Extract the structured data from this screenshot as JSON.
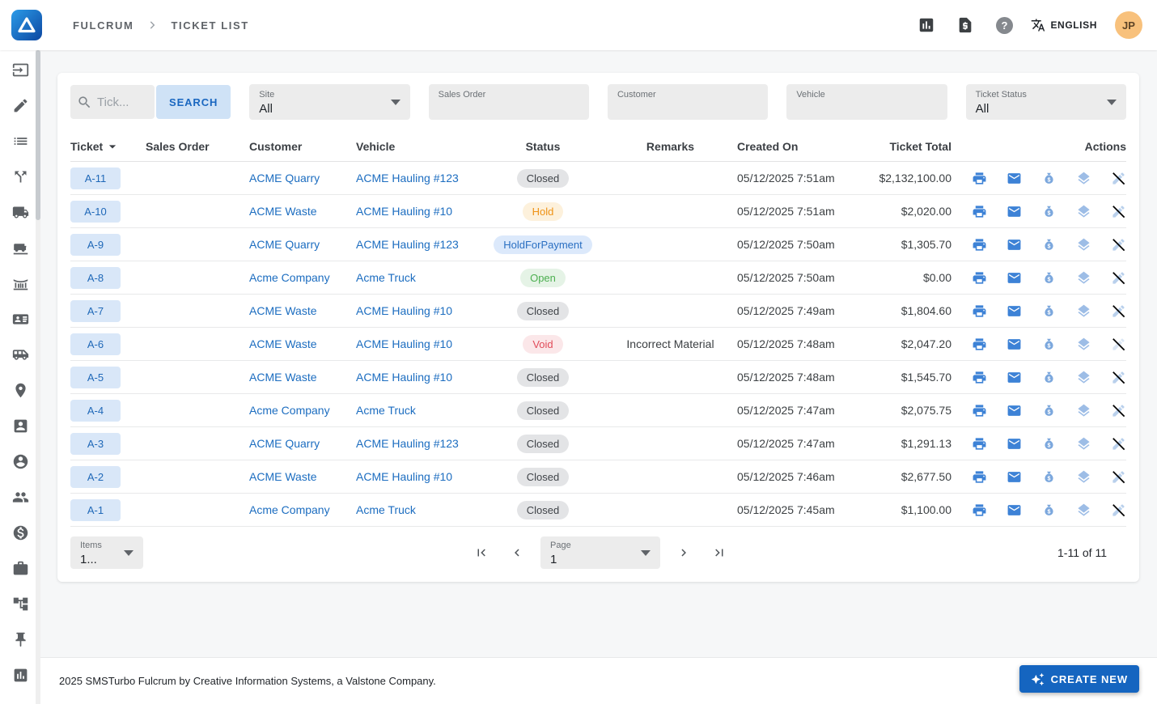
{
  "header": {
    "breadcrumb_root": "FULCRUM",
    "breadcrumb_current": "TICKET LIST",
    "help_glyph": "?",
    "language_label": "ENGLISH",
    "avatar_initials": "JP"
  },
  "sidebar": {
    "items": [
      {
        "name": "sidebar-item-ticket-entry",
        "icon": "input-ticket-icon"
      },
      {
        "name": "sidebar-item-edit-ticket",
        "icon": "pencil-icon"
      },
      {
        "name": "sidebar-item-ticket-list",
        "icon": "list-icon"
      },
      {
        "name": "sidebar-item-split-load",
        "icon": "split-arrows-icon"
      },
      {
        "name": "sidebar-item-vehicles",
        "icon": "truck-icon"
      },
      {
        "name": "sidebar-item-truck-scale",
        "icon": "truck-scale-icon"
      },
      {
        "name": "sidebar-item-weighbridge",
        "icon": "weighbridge-icon"
      },
      {
        "name": "sidebar-item-contacts",
        "icon": "contact-card-icon"
      },
      {
        "name": "sidebar-item-haulers",
        "icon": "truck-front-icon"
      },
      {
        "name": "sidebar-item-sites",
        "icon": "map-marker-icon"
      },
      {
        "name": "sidebar-item-id-badge",
        "icon": "id-badge-icon"
      },
      {
        "name": "sidebar-item-account",
        "icon": "person-circle-icon"
      },
      {
        "name": "sidebar-item-drivers",
        "icon": "people-icon"
      },
      {
        "name": "sidebar-item-pricing",
        "icon": "dollar-circle-icon"
      },
      {
        "name": "sidebar-item-jobs",
        "icon": "briefcase-icon"
      },
      {
        "name": "sidebar-item-org-chart",
        "icon": "org-chart-icon"
      },
      {
        "name": "sidebar-item-locations",
        "icon": "push-pin-icon"
      },
      {
        "name": "sidebar-item-reports",
        "icon": "chart-icon"
      }
    ]
  },
  "filters": {
    "search_placeholder": "Tick...",
    "search_button": "SEARCH",
    "site_label": "Site",
    "site_value": "All",
    "sales_order_label": "Sales Order",
    "sales_order_value": "",
    "customer_label": "Customer",
    "customer_value": "",
    "vehicle_label": "Vehicle",
    "vehicle_value": "",
    "ticket_status_label": "Ticket Status",
    "ticket_status_value": "All"
  },
  "table": {
    "columns": [
      "Ticket",
      "Sales Order",
      "Customer",
      "Vehicle",
      "Status",
      "Remarks",
      "Created On",
      "Ticket Total",
      "Actions"
    ],
    "rows": [
      {
        "ticket": "A-11",
        "sales_order": "",
        "customer": "ACME Quarry",
        "vehicle": "ACME Hauling #123",
        "status": "Closed",
        "remarks": "",
        "created_on": "05/12/2025 7:51am",
        "ticket_total": "$2,132,100.00"
      },
      {
        "ticket": "A-10",
        "sales_order": "",
        "customer": "ACME Waste",
        "vehicle": "ACME Hauling #10",
        "status": "Hold",
        "remarks": "",
        "created_on": "05/12/2025 7:51am",
        "ticket_total": "$2,020.00"
      },
      {
        "ticket": "A-9",
        "sales_order": "",
        "customer": "ACME Quarry",
        "vehicle": "ACME Hauling #123",
        "status": "HoldForPayment",
        "remarks": "",
        "created_on": "05/12/2025 7:50am",
        "ticket_total": "$1,305.70"
      },
      {
        "ticket": "A-8",
        "sales_order": "",
        "customer": "Acme Company",
        "vehicle": "Acme Truck",
        "status": "Open",
        "remarks": "",
        "created_on": "05/12/2025 7:50am",
        "ticket_total": "$0.00"
      },
      {
        "ticket": "A-7",
        "sales_order": "",
        "customer": "ACME Waste",
        "vehicle": "ACME Hauling #10",
        "status": "Closed",
        "remarks": "",
        "created_on": "05/12/2025 7:49am",
        "ticket_total": "$1,804.60"
      },
      {
        "ticket": "A-6",
        "sales_order": "",
        "customer": "ACME Waste",
        "vehicle": "ACME Hauling #10",
        "status": "Void",
        "remarks": "Incorrect Material",
        "created_on": "05/12/2025 7:48am",
        "ticket_total": "$2,047.20",
        "void_disabled": true
      },
      {
        "ticket": "A-5",
        "sales_order": "",
        "customer": "ACME Waste",
        "vehicle": "ACME Hauling #10",
        "status": "Closed",
        "remarks": "",
        "created_on": "05/12/2025 7:48am",
        "ticket_total": "$1,545.70"
      },
      {
        "ticket": "A-4",
        "sales_order": "",
        "customer": "Acme Company",
        "vehicle": "Acme Truck",
        "status": "Closed",
        "remarks": "",
        "created_on": "05/12/2025 7:47am",
        "ticket_total": "$2,075.75"
      },
      {
        "ticket": "A-3",
        "sales_order": "",
        "customer": "ACME Quarry",
        "vehicle": "ACME Hauling #123",
        "status": "Closed",
        "remarks": "",
        "created_on": "05/12/2025 7:47am",
        "ticket_total": "$1,291.13"
      },
      {
        "ticket": "A-2",
        "sales_order": "",
        "customer": "ACME Waste",
        "vehicle": "ACME Hauling #10",
        "status": "Closed",
        "remarks": "",
        "created_on": "05/12/2025 7:46am",
        "ticket_total": "$2,677.50"
      },
      {
        "ticket": "A-1",
        "sales_order": "",
        "customer": "Acme Company",
        "vehicle": "Acme Truck",
        "status": "Closed",
        "remarks": "",
        "created_on": "05/12/2025 7:45am",
        "ticket_total": "$1,100.00"
      }
    ]
  },
  "pagination": {
    "items_label": "Items",
    "items_value": "1...",
    "page_label": "Page",
    "page_value": "1",
    "range": "1-11 of 11"
  },
  "footer": {
    "text": "2025 SMSTurbo Fulcrum by Creative Information Systems, a Valstone Company.",
    "create_button": "CREATE NEW"
  },
  "colors": {
    "accent": "#1565c0",
    "link": "#1c6dc0",
    "ticket_chip_bg": "#d9e7f8",
    "ticket_chip_fg": "#1f68b8",
    "search_button_bg": "#cfe2f6",
    "search_button_fg": "#1a67c0",
    "status_colors": {
      "Closed": {
        "bg": "#e3e4e6",
        "fg": "#3f4348"
      },
      "Hold": {
        "bg": "#fdf1dc",
        "fg": "#ef9215"
      },
      "HoldForPayment": {
        "bg": "#dce9fb",
        "fg": "#2a6fc2"
      },
      "Open": {
        "bg": "#e5f3e6",
        "fg": "#4caf50"
      },
      "Void": {
        "bg": "#fbe7e9",
        "fg": "#e14b59"
      }
    }
  }
}
